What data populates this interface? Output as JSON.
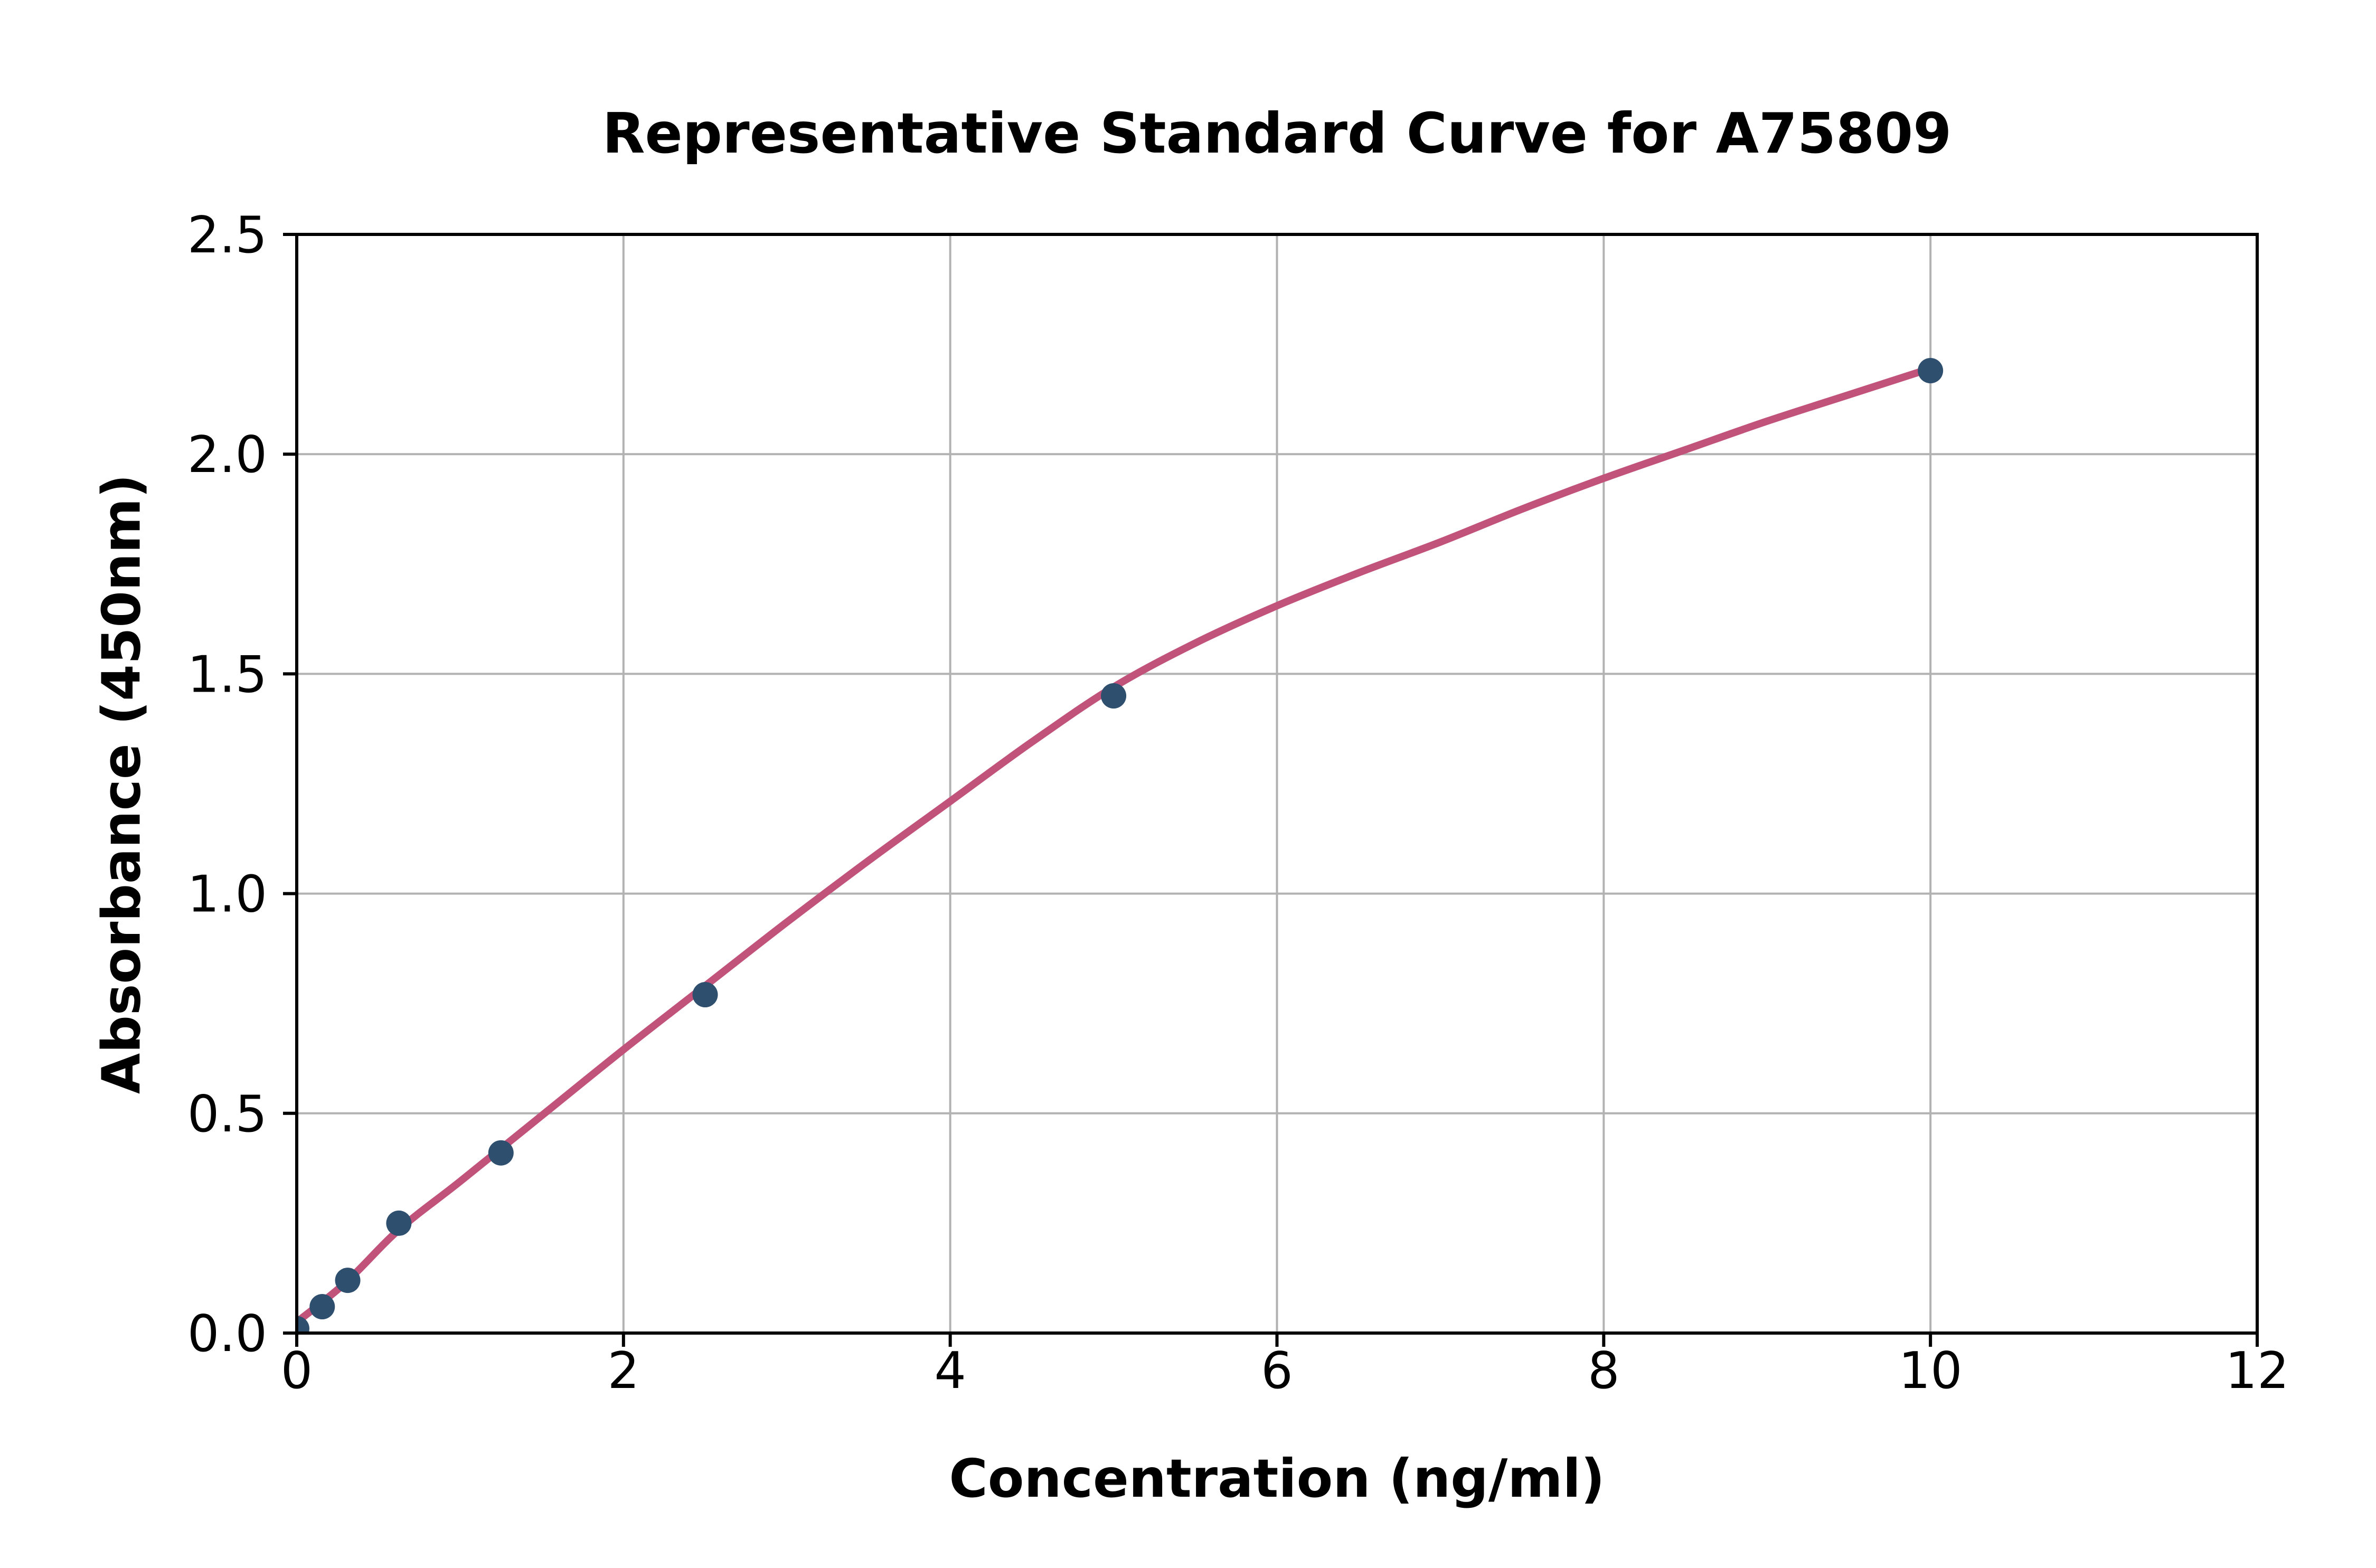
{
  "figure": {
    "background": "#ffffff"
  },
  "chart_data": {
    "type": "scatter",
    "title": "Representative Standard Curve for A75809",
    "xlabel": "Concentration (ng/ml)",
    "ylabel": "Absorbance (450nm)",
    "xlim": [
      0,
      12
    ],
    "ylim": [
      0,
      2.5
    ],
    "x_ticks": [
      0,
      2,
      4,
      6,
      8,
      10,
      12
    ],
    "x_tick_labels": [
      "0",
      "2",
      "4",
      "6",
      "8",
      "10",
      "12"
    ],
    "y_ticks": [
      0,
      0.5,
      1.0,
      1.5,
      2.0,
      2.5
    ],
    "y_tick_labels": [
      "0.0",
      "0.5",
      "1.0",
      "1.5",
      "2.0",
      "2.5"
    ],
    "grid": "on",
    "grid_x": [
      2,
      4,
      6,
      8,
      10
    ],
    "grid_y": [
      0.5,
      1.0,
      1.5,
      2.0
    ],
    "legend": "none",
    "colors": {
      "point_color": "#2f4f6e",
      "curve_color": "#c1537b",
      "grid_color": "#b2b2b2",
      "axis_color": "#000000",
      "text_color": "#000000"
    },
    "series": [
      {
        "name": "standard-points",
        "type": "scatter",
        "points": [
          {
            "x": 0,
            "y": 0.01
          },
          {
            "x": 0.156,
            "y": 0.06
          },
          {
            "x": 0.312,
            "y": 0.12
          },
          {
            "x": 0.625,
            "y": 0.25
          },
          {
            "x": 1.25,
            "y": 0.41
          },
          {
            "x": 2.5,
            "y": 0.77
          },
          {
            "x": 5,
            "y": 1.45
          },
          {
            "x": 10,
            "y": 2.19
          }
        ]
      },
      {
        "name": "fitted-curve",
        "type": "line",
        "points": [
          {
            "x": 0,
            "y": 0.025
          },
          {
            "x": 0.3,
            "y": 0.115
          },
          {
            "x": 0.625,
            "y": 0.235
          },
          {
            "x": 1,
            "y": 0.345
          },
          {
            "x": 1.5,
            "y": 0.495
          },
          {
            "x": 2,
            "y": 0.645
          },
          {
            "x": 2.5,
            "y": 0.79
          },
          {
            "x": 3,
            "y": 0.935
          },
          {
            "x": 3.5,
            "y": 1.075
          },
          {
            "x": 4,
            "y": 1.21
          },
          {
            "x": 4.5,
            "y": 1.345
          },
          {
            "x": 5,
            "y": 1.47
          },
          {
            "x": 5.5,
            "y": 1.57
          },
          {
            "x": 6,
            "y": 1.655
          },
          {
            "x": 6.5,
            "y": 1.73
          },
          {
            "x": 7,
            "y": 1.8
          },
          {
            "x": 7.5,
            "y": 1.875
          },
          {
            "x": 8,
            "y": 1.945
          },
          {
            "x": 8.5,
            "y": 2.01
          },
          {
            "x": 9,
            "y": 2.075
          },
          {
            "x": 9.5,
            "y": 2.135
          },
          {
            "x": 10,
            "y": 2.195
          }
        ]
      }
    ]
  }
}
